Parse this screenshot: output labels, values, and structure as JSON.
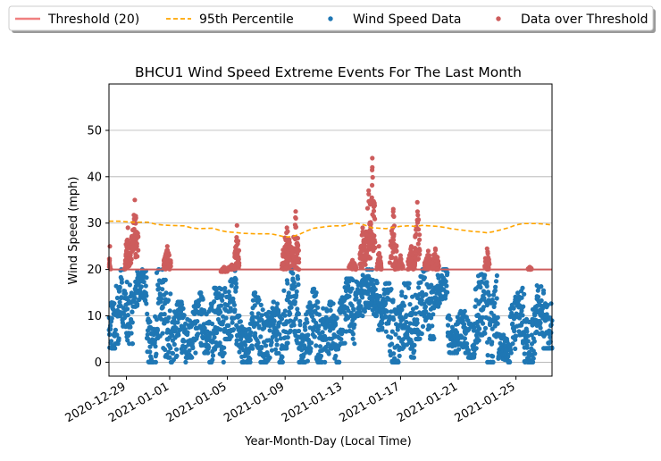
{
  "chart_data": {
    "type": "scatter",
    "title": "BHCU1 Wind Speed Extreme Events For The Last Month",
    "xlabel": "Year-Month-Day (Local Time)",
    "ylabel": "Wind Speed (mph)",
    "x_type": "date",
    "xlim": [
      "2020-12-27T19:00",
      "2021-01-27T12:00"
    ],
    "ylim": [
      -3,
      60
    ],
    "x_ticks": [
      "2020-12-29",
      "2021-01-01",
      "2021-01-05",
      "2021-01-09",
      "2021-01-13",
      "2021-01-17",
      "2021-01-21",
      "2021-01-25"
    ],
    "y_ticks": [
      0,
      10,
      20,
      30,
      40,
      50
    ],
    "grid": "horizontal",
    "legend_position": "top, above plot (4 columns)",
    "colors": {
      "threshold": "#f08080",
      "percentile": "#ffa500",
      "wind": "#1f77b4",
      "over": "#cd5c5c"
    },
    "threshold": {
      "name": "Threshold (20)",
      "value": 20
    },
    "percentile_95": {
      "name": "95th Percentile",
      "points": [
        [
          "2020-12-27T19:00",
          30.4
        ],
        [
          "2020-12-28T12:00",
          30.4
        ],
        [
          "2020-12-29T00:00",
          30.3
        ],
        [
          "2020-12-29T12:00",
          30.2
        ],
        [
          "2020-12-30T00:00",
          30.2
        ],
        [
          "2020-12-30T12:00",
          30.2
        ],
        [
          "2020-12-31T00:00",
          29.8
        ],
        [
          "2020-12-31T12:00",
          29.6
        ],
        [
          "2021-01-01T00:00",
          29.5
        ],
        [
          "2021-01-02T00:00",
          29.4
        ],
        [
          "2021-01-02T12:00",
          29.0
        ],
        [
          "2021-01-03T00:00",
          28.8
        ],
        [
          "2021-01-04T00:00",
          28.9
        ],
        [
          "2021-01-04T12:00",
          28.4
        ],
        [
          "2021-01-05T00:00",
          28.1
        ],
        [
          "2021-01-05T12:00",
          28.0
        ],
        [
          "2021-01-06T00:00",
          27.8
        ],
        [
          "2021-01-07T00:00",
          27.7
        ],
        [
          "2021-01-08T00:00",
          27.7
        ],
        [
          "2021-01-08T12:00",
          27.4
        ],
        [
          "2021-01-09T00:00",
          27.0
        ],
        [
          "2021-01-09T12:00",
          27.1
        ],
        [
          "2021-01-10T00:00",
          27.6
        ],
        [
          "2021-01-10T12:00",
          28.3
        ],
        [
          "2021-01-11T00:00",
          28.9
        ],
        [
          "2021-01-11T12:00",
          29.1
        ],
        [
          "2021-01-12T00:00",
          29.3
        ],
        [
          "2021-01-12T12:00",
          29.4
        ],
        [
          "2021-01-13T00:00",
          29.4
        ],
        [
          "2021-01-13T12:00",
          29.8
        ],
        [
          "2021-01-14T00:00",
          30.0
        ],
        [
          "2021-01-14T12:00",
          29.6
        ],
        [
          "2021-01-15T00:00",
          29.0
        ],
        [
          "2021-01-15T12:00",
          28.9
        ],
        [
          "2021-01-16T00:00",
          28.8
        ],
        [
          "2021-01-16T12:00",
          29.1
        ],
        [
          "2021-01-17T00:00",
          29.3
        ],
        [
          "2021-01-17T12:00",
          29.4
        ],
        [
          "2021-01-18T00:00",
          29.3
        ],
        [
          "2021-01-18T12:00",
          29.5
        ],
        [
          "2021-01-19T00:00",
          29.4
        ],
        [
          "2021-01-19T12:00",
          29.3
        ],
        [
          "2021-01-20T00:00",
          29.1
        ],
        [
          "2021-01-20T12:00",
          28.8
        ],
        [
          "2021-01-21T00:00",
          28.6
        ],
        [
          "2021-01-21T12:00",
          28.4
        ],
        [
          "2021-01-22T00:00",
          28.2
        ],
        [
          "2021-01-22T12:00",
          28.1
        ],
        [
          "2021-01-23T00:00",
          27.9
        ],
        [
          "2021-01-23T12:00",
          28.2
        ],
        [
          "2021-01-24T00:00",
          28.6
        ],
        [
          "2021-01-24T12:00",
          29.0
        ],
        [
          "2021-01-25T00:00",
          29.6
        ],
        [
          "2021-01-25T12:00",
          29.9
        ],
        [
          "2021-01-26T00:00",
          29.9
        ],
        [
          "2021-01-26T12:00",
          29.9
        ],
        [
          "2021-01-27T00:00",
          29.8
        ],
        [
          "2021-01-27T12:00",
          29.6
        ]
      ]
    },
    "wind_speed": {
      "name": "Wind Speed Data",
      "segments": [
        [
          "2020-12-27T19:00",
          "2020-12-28T05:00",
          3,
          17
        ],
        [
          "2020-12-28T05:00",
          "2020-12-29T11:00",
          4,
          20
        ],
        [
          "2020-12-29T11:00",
          "2020-12-30T10:00",
          12,
          20
        ],
        [
          "2020-12-30T10:00",
          "2020-12-31T02:00",
          0,
          12
        ],
        [
          "2020-12-31T02:00",
          "2021-01-01T02:00",
          1,
          20
        ],
        [
          "2021-01-01T02:00",
          "2021-01-02T03:00",
          0,
          13
        ],
        [
          "2021-01-02T03:00",
          "2021-01-02T21:00",
          1,
          13
        ],
        [
          "2021-01-02T21:00",
          "2021-01-03T17:00",
          2,
          15
        ],
        [
          "2021-01-03T17:00",
          "2021-01-04T19:00",
          0,
          16
        ],
        [
          "2021-01-04T19:00",
          "2021-01-05T15:00",
          5,
          20
        ],
        [
          "2021-01-05T15:00",
          "2021-01-06T16:00",
          0,
          10
        ],
        [
          "2021-01-06T16:00",
          "2021-01-07T19:00",
          0,
          15
        ],
        [
          "2021-01-07T19:00",
          "2021-01-08T20:00",
          0,
          13
        ],
        [
          "2021-01-08T20:00",
          "2021-01-09T23:00",
          3,
          20
        ],
        [
          "2021-01-09T23:00",
          "2021-01-10T19:00",
          0,
          13
        ],
        [
          "2021-01-10T19:00",
          "2021-01-11T16:00",
          0,
          16
        ],
        [
          "2021-01-11T16:00",
          "2021-01-12T18:00",
          0,
          13
        ],
        [
          "2021-01-12T18:00",
          "2021-01-13T20:00",
          4,
          18
        ],
        [
          "2021-01-13T20:00",
          "2021-01-15T10:00",
          10,
          20
        ],
        [
          "2021-01-15T10:00",
          "2021-01-16T00:00",
          7,
          17
        ],
        [
          "2021-01-16T00:00",
          "2021-01-17T01:00",
          0,
          17
        ],
        [
          "2021-01-17T01:00",
          "2021-01-18T00:00",
          1,
          17
        ],
        [
          "2021-01-18T00:00",
          "2021-01-19T08:00",
          5,
          20
        ],
        [
          "2021-01-19T08:00",
          "2021-01-20T06:00",
          12,
          20
        ],
        [
          "2021-01-20T06:00",
          "2021-01-21T02:00",
          2,
          11
        ],
        [
          "2021-01-21T02:00",
          "2021-01-22T04:00",
          1,
          11
        ],
        [
          "2021-01-22T04:00",
          "2021-01-23T00:00",
          3,
          19
        ],
        [
          "2021-01-23T00:00",
          "2021-01-23T18:00",
          0,
          19
        ],
        [
          "2021-01-23T18:00",
          "2021-01-24T14:00",
          0,
          6
        ],
        [
          "2021-01-24T14:00",
          "2021-01-25T14:00",
          2,
          16
        ],
        [
          "2021-01-25T14:00",
          "2021-01-26T08:00",
          0,
          13
        ],
        [
          "2021-01-26T08:00",
          "2021-01-26T22:00",
          4,
          17
        ],
        [
          "2021-01-26T22:00",
          "2021-01-27T12:00",
          3,
          16
        ]
      ]
    },
    "over_threshold": {
      "name": "Data over Threshold",
      "clusters": [
        [
          "2020-12-27T19:00",
          "2020-12-27T22:00",
          20,
          25
        ],
        [
          "2020-12-28T21:00",
          "2020-12-29T08:00",
          20,
          29
        ],
        [
          "2020-12-29T08:00",
          "2020-12-29T20:00",
          22,
          35
        ],
        [
          "2020-12-31T14:00",
          "2021-01-01T02:00",
          20,
          25
        ],
        [
          "2021-01-04T13:00",
          "2021-01-05T00:00",
          19.5,
          20.5
        ],
        [
          "2021-01-05T00:00",
          "2021-01-05T15:00",
          20,
          21
        ],
        [
          "2021-01-05T12:00",
          "2021-01-05T20:00",
          20,
          29.5
        ],
        [
          "2021-01-08T18:00",
          "2021-01-09T12:00",
          20,
          29
        ],
        [
          "2021-01-09T12:00",
          "2021-01-09T23:00",
          20,
          32.5
        ],
        [
          "2021-01-13T10:00",
          "2021-01-13T22:00",
          20,
          22
        ],
        [
          "2021-01-14T04:00",
          "2021-01-14T14:00",
          20,
          29
        ],
        [
          "2021-01-14T14:00",
          "2021-01-15T00:00",
          22,
          37
        ],
        [
          "2021-01-14T20:00",
          "2021-01-15T06:00",
          24,
          44
        ],
        [
          "2021-01-15T08:00",
          "2021-01-15T16:00",
          20,
          25
        ],
        [
          "2021-01-16T06:00",
          "2021-01-16T18:00",
          20,
          33
        ],
        [
          "2021-01-16T20:00",
          "2021-01-17T04:00",
          20,
          23
        ],
        [
          "2021-01-17T12:00",
          "2021-01-18T00:00",
          20,
          25
        ],
        [
          "2021-01-18T00:00",
          "2021-01-18T08:00",
          22,
          34.5
        ],
        [
          "2021-01-18T16:00",
          "2021-01-19T04:00",
          20,
          24
        ],
        [
          "2021-01-19T04:00",
          "2021-01-19T16:00",
          20,
          24.5
        ],
        [
          "2021-01-22T20:00",
          "2021-01-23T04:00",
          20,
          24.5
        ],
        [
          "2021-01-25T20:00",
          "2021-01-26T02:00",
          20,
          20.5
        ]
      ]
    }
  }
}
